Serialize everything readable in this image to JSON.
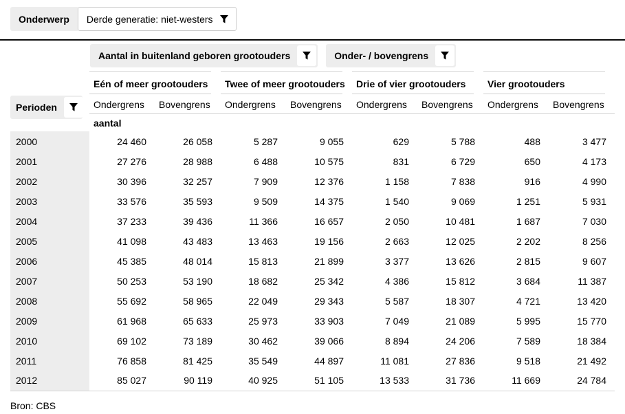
{
  "topic_filter": {
    "label": "Onderwerp",
    "value": "Derde generatie: niet-westers"
  },
  "column_filters": [
    {
      "label": "Aantal in buitenland geboren grootouders"
    },
    {
      "label": "Onder- / bovengrens"
    }
  ],
  "icons": {
    "filter": "funnel-filter-icon"
  },
  "colors": {
    "pill_background": "#ededed",
    "row_header_background": "#ededed",
    "divider_black": "#0a0a0a",
    "line_gray": "#d2d2d2",
    "text": "#000000"
  },
  "table": {
    "row_header_label": "Perioden",
    "unit": "aantal",
    "groups": [
      {
        "label": "Eén of meer grootouders",
        "columns": [
          "Ondergrens",
          "Bovengrens"
        ]
      },
      {
        "label": "Twee of meer grootouders",
        "columns": [
          "Ondergrens",
          "Bovengrens"
        ]
      },
      {
        "label": "Drie of vier grootouders",
        "columns": [
          "Ondergrens",
          "Bovengrens"
        ]
      },
      {
        "label": "Vier grootouders",
        "columns": [
          "Ondergrens",
          "Bovengrens"
        ]
      }
    ],
    "rows": [
      {
        "period": "2000",
        "values": [
          "24 460",
          "26 058",
          "5 287",
          "9 055",
          "629",
          "5 788",
          "488",
          "3 477"
        ]
      },
      {
        "period": "2001",
        "values": [
          "27 276",
          "28 988",
          "6 488",
          "10 575",
          "831",
          "6 729",
          "650",
          "4 173"
        ]
      },
      {
        "period": "2002",
        "values": [
          "30 396",
          "32 257",
          "7 909",
          "12 376",
          "1 158",
          "7 838",
          "916",
          "4 990"
        ]
      },
      {
        "period": "2003",
        "values": [
          "33 576",
          "35 593",
          "9 509",
          "14 375",
          "1 540",
          "9 069",
          "1 251",
          "5 931"
        ]
      },
      {
        "period": "2004",
        "values": [
          "37 233",
          "39 436",
          "11 366",
          "16 657",
          "2 050",
          "10 481",
          "1 687",
          "7 030"
        ]
      },
      {
        "period": "2005",
        "values": [
          "41 098",
          "43 483",
          "13 463",
          "19 156",
          "2 663",
          "12 025",
          "2 202",
          "8 256"
        ]
      },
      {
        "period": "2006",
        "values": [
          "45 385",
          "48 014",
          "15 813",
          "21 899",
          "3 377",
          "13 626",
          "2 815",
          "9 607"
        ]
      },
      {
        "period": "2007",
        "values": [
          "50 253",
          "53 190",
          "18 682",
          "25 342",
          "4 386",
          "15 812",
          "3 684",
          "11 387"
        ]
      },
      {
        "period": "2008",
        "values": [
          "55 692",
          "58 965",
          "22 049",
          "29 343",
          "5 587",
          "18 307",
          "4 721",
          "13 420"
        ]
      },
      {
        "period": "2009",
        "values": [
          "61 968",
          "65 633",
          "25 973",
          "33 903",
          "7 049",
          "21 089",
          "5 995",
          "15 770"
        ]
      },
      {
        "period": "2010",
        "values": [
          "69 102",
          "73 189",
          "30 462",
          "39 066",
          "8 894",
          "24 206",
          "7 589",
          "18 384"
        ]
      },
      {
        "period": "2011",
        "values": [
          "76 858",
          "81 425",
          "35 549",
          "44 897",
          "11 081",
          "27 836",
          "9 518",
          "21 492"
        ]
      },
      {
        "period": "2012",
        "values": [
          "85 027",
          "90 119",
          "40 925",
          "51 105",
          "13 533",
          "31 736",
          "11 669",
          "24 784"
        ]
      }
    ]
  },
  "source": "Bron: CBS"
}
